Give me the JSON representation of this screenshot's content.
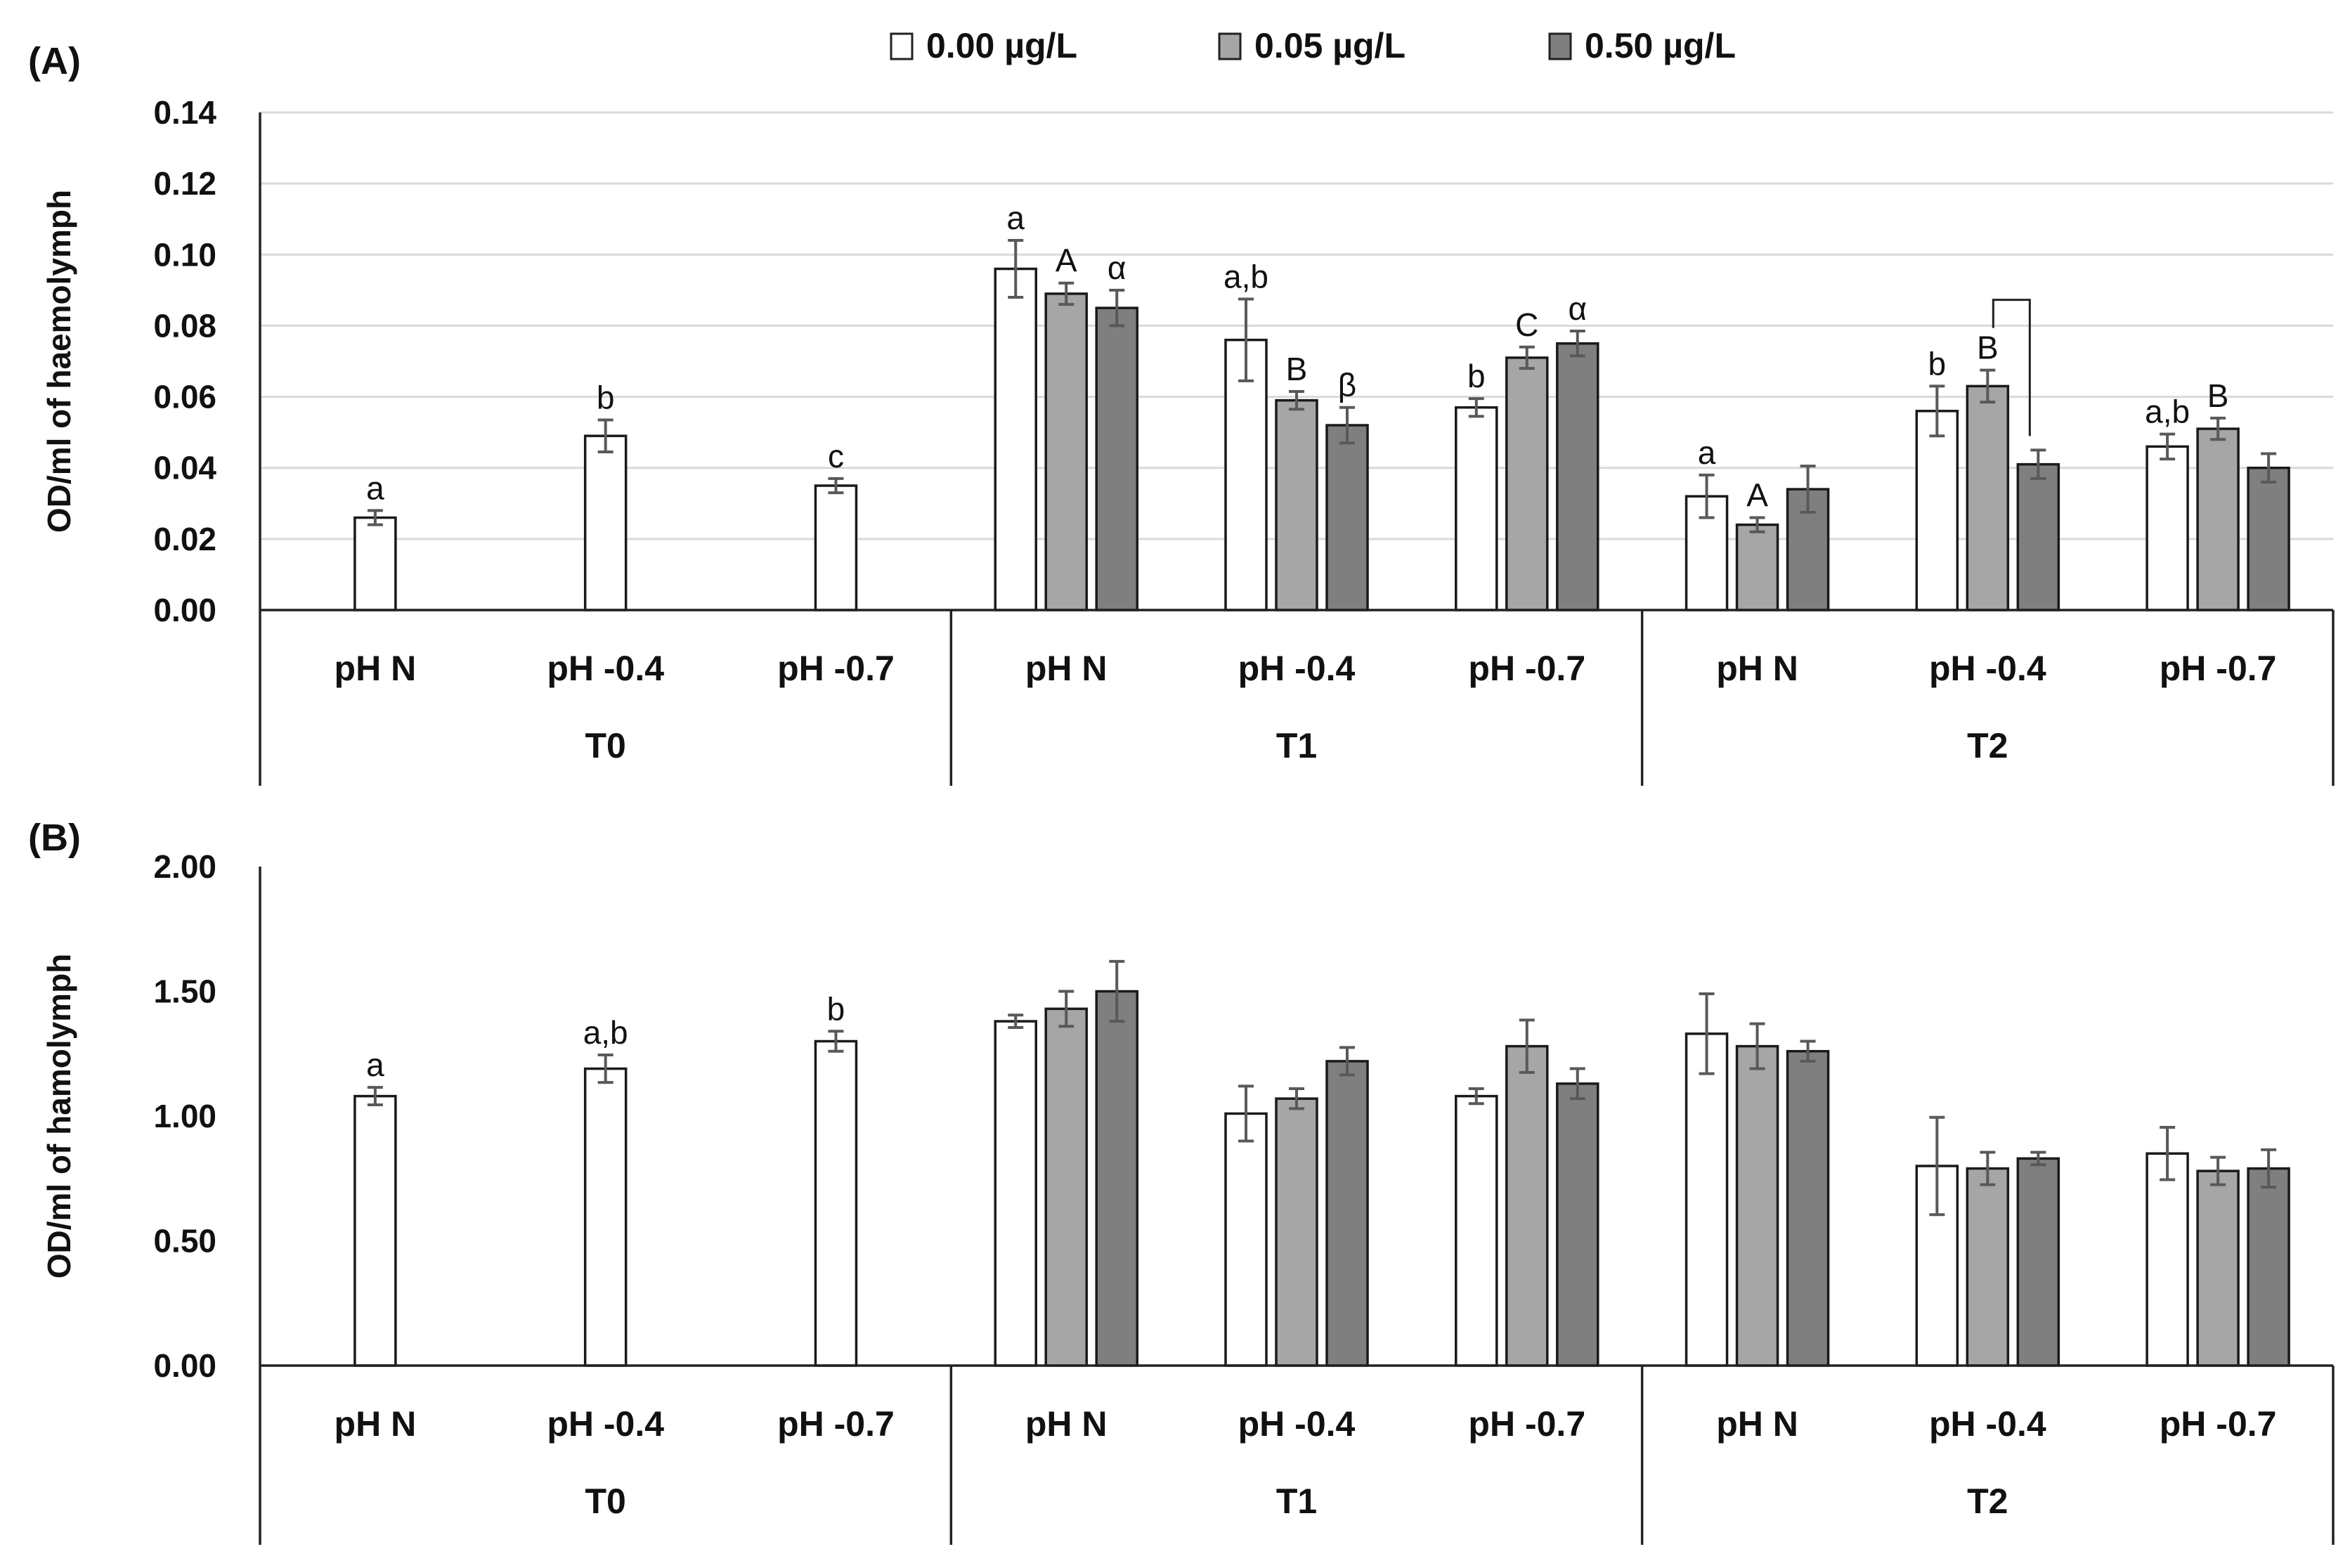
{
  "legend": {
    "items": [
      {
        "label": "0.00 µg/L",
        "color": "#ffffff"
      },
      {
        "label": "0.05 µg/L",
        "color": "#a6a6a6"
      },
      {
        "label": "0.50 µg/L",
        "color": "#7f7f7f"
      }
    ]
  },
  "chart_data": [
    {
      "type": "bar",
      "panel_label": "(A)",
      "title": "",
      "ylabel": "OD/ml of haemolymph",
      "ylim": [
        0,
        0.14
      ],
      "yticks": [
        "0.00",
        "0.02",
        "0.04",
        "0.06",
        "0.08",
        "0.10",
        "0.12",
        "0.14"
      ],
      "gridlines": true,
      "groups": [
        {
          "label": "T0",
          "categories": [
            {
              "label": "pH N",
              "bars": [
                {
                  "series": 0,
                  "value": 0.026,
                  "err": 0.002,
                  "letter": "a"
                }
              ]
            },
            {
              "label": "pH -0.4",
              "bars": [
                {
                  "series": 0,
                  "value": 0.049,
                  "err": 0.0045,
                  "letter": "b"
                }
              ]
            },
            {
              "label": "pH -0.7",
              "bars": [
                {
                  "series": 0,
                  "value": 0.035,
                  "err": 0.002,
                  "letter": "c"
                }
              ]
            }
          ]
        },
        {
          "label": "T1",
          "categories": [
            {
              "label": "pH N",
              "bars": [
                {
                  "series": 0,
                  "value": 0.096,
                  "err": 0.008,
                  "letter": "a"
                },
                {
                  "series": 1,
                  "value": 0.089,
                  "err": 0.003,
                  "letter": "A"
                },
                {
                  "series": 2,
                  "value": 0.085,
                  "err": 0.005,
                  "letter": "α"
                }
              ]
            },
            {
              "label": "pH -0.4",
              "bars": [
                {
                  "series": 0,
                  "value": 0.076,
                  "err": 0.0115,
                  "letter": "a,b"
                },
                {
                  "series": 1,
                  "value": 0.059,
                  "err": 0.0025,
                  "letter": "B"
                },
                {
                  "series": 2,
                  "value": 0.052,
                  "err": 0.005,
                  "letter": "β"
                }
              ]
            },
            {
              "label": "pH -0.7",
              "bars": [
                {
                  "series": 0,
                  "value": 0.057,
                  "err": 0.0025,
                  "letter": "b"
                },
                {
                  "series": 1,
                  "value": 0.071,
                  "err": 0.003,
                  "letter": "C"
                },
                {
                  "series": 2,
                  "value": 0.075,
                  "err": 0.0035,
                  "letter": "α"
                }
              ]
            }
          ]
        },
        {
          "label": "T2",
          "categories": [
            {
              "label": "pH N",
              "bars": [
                {
                  "series": 0,
                  "value": 0.032,
                  "err": 0.006,
                  "letter": "a"
                },
                {
                  "series": 1,
                  "value": 0.024,
                  "err": 0.002,
                  "letter": "A"
                },
                {
                  "series": 2,
                  "value": 0.034,
                  "err": 0.0065,
                  "letter": ""
                }
              ]
            },
            {
              "label": "pH -0.4",
              "bars": [
                {
                  "series": 0,
                  "value": 0.056,
                  "err": 0.007,
                  "letter": "b"
                },
                {
                  "series": 1,
                  "value": 0.063,
                  "err": 0.0045,
                  "letter": "B"
                },
                {
                  "series": 2,
                  "value": 0.041,
                  "err": 0.004,
                  "letter": ""
                }
              ]
            },
            {
              "label": "pH -0.7",
              "bars": [
                {
                  "series": 0,
                  "value": 0.046,
                  "err": 0.0035,
                  "letter": "a,b"
                },
                {
                  "series": 1,
                  "value": 0.051,
                  "err": 0.003,
                  "letter": "B"
                },
                {
                  "series": 2,
                  "value": 0.04,
                  "err": 0.004,
                  "letter": ""
                }
              ]
            }
          ]
        }
      ],
      "brackets": [
        {
          "group": 2,
          "category": 1,
          "from_series": 1,
          "to_series": 2
        }
      ]
    },
    {
      "type": "bar",
      "panel_label": "(B)",
      "title": "",
      "ylabel": "OD/ml of hamolymph",
      "ylim": [
        0,
        2.0
      ],
      "yticks": [
        "0.00",
        "0.50",
        "1.00",
        "1.50",
        "2.00"
      ],
      "gridlines": false,
      "groups": [
        {
          "label": "T0",
          "categories": [
            {
              "label": "pH N",
              "bars": [
                {
                  "series": 0,
                  "value": 1.08,
                  "err": 0.035,
                  "letter": "a"
                }
              ]
            },
            {
              "label": "pH -0.4",
              "bars": [
                {
                  "series": 0,
                  "value": 1.19,
                  "err": 0.055,
                  "letter": "a,b"
                }
              ]
            },
            {
              "label": "pH -0.7",
              "bars": [
                {
                  "series": 0,
                  "value": 1.3,
                  "err": 0.04,
                  "letter": "b"
                }
              ]
            }
          ]
        },
        {
          "label": "T1",
          "categories": [
            {
              "label": "pH N",
              "bars": [
                {
                  "series": 0,
                  "value": 1.38,
                  "err": 0.025,
                  "letter": ""
                },
                {
                  "series": 1,
                  "value": 1.43,
                  "err": 0.07,
                  "letter": ""
                },
                {
                  "series": 2,
                  "value": 1.5,
                  "err": 0.12,
                  "letter": ""
                }
              ]
            },
            {
              "label": "pH -0.4",
              "bars": [
                {
                  "series": 0,
                  "value": 1.01,
                  "err": 0.11,
                  "letter": ""
                },
                {
                  "series": 1,
                  "value": 1.07,
                  "err": 0.04,
                  "letter": ""
                },
                {
                  "series": 2,
                  "value": 1.22,
                  "err": 0.055,
                  "letter": ""
                }
              ]
            },
            {
              "label": "pH -0.7",
              "bars": [
                {
                  "series": 0,
                  "value": 1.08,
                  "err": 0.03,
                  "letter": ""
                },
                {
                  "series": 1,
                  "value": 1.28,
                  "err": 0.105,
                  "letter": ""
                },
                {
                  "series": 2,
                  "value": 1.13,
                  "err": 0.06,
                  "letter": ""
                }
              ]
            }
          ]
        },
        {
          "label": "T2",
          "categories": [
            {
              "label": "pH N",
              "bars": [
                {
                  "series": 0,
                  "value": 1.33,
                  "err": 0.16,
                  "letter": ""
                },
                {
                  "series": 1,
                  "value": 1.28,
                  "err": 0.09,
                  "letter": ""
                },
                {
                  "series": 2,
                  "value": 1.26,
                  "err": 0.04,
                  "letter": ""
                }
              ]
            },
            {
              "label": "pH -0.4",
              "bars": [
                {
                  "series": 0,
                  "value": 0.8,
                  "err": 0.195,
                  "letter": ""
                },
                {
                  "series": 1,
                  "value": 0.79,
                  "err": 0.065,
                  "letter": ""
                },
                {
                  "series": 2,
                  "value": 0.83,
                  "err": 0.025,
                  "letter": ""
                }
              ]
            },
            {
              "label": "pH -0.7",
              "bars": [
                {
                  "series": 0,
                  "value": 0.85,
                  "err": 0.105,
                  "letter": ""
                },
                {
                  "series": 1,
                  "value": 0.78,
                  "err": 0.055,
                  "letter": ""
                },
                {
                  "series": 2,
                  "value": 0.79,
                  "err": 0.075,
                  "letter": ""
                }
              ]
            }
          ]
        }
      ],
      "brackets": []
    }
  ]
}
